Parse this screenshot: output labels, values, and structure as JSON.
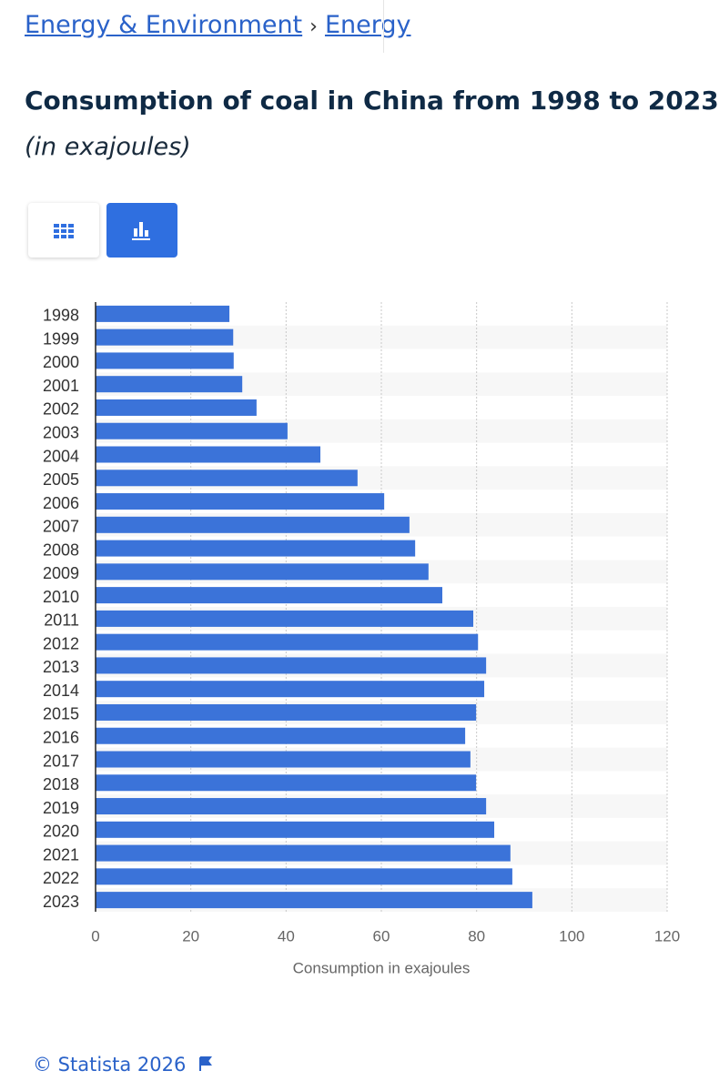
{
  "breadcrumb": {
    "items": [
      "Energy & Environment",
      "Energy"
    ],
    "separator": "›"
  },
  "header": {
    "title": "Consumption of coal in China from 1998 to 2023",
    "subtitle": "(in exajoules)"
  },
  "chart_data": {
    "type": "bar",
    "orientation": "horizontal",
    "categories": [
      "1998",
      "1999",
      "2000",
      "2001",
      "2002",
      "2003",
      "2004",
      "2005",
      "2006",
      "2007",
      "2008",
      "2009",
      "2010",
      "2011",
      "2012",
      "2013",
      "2014",
      "2015",
      "2016",
      "2017",
      "2018",
      "2019",
      "2020",
      "2021",
      "2022",
      "2023"
    ],
    "values": [
      28.1,
      28.9,
      29.0,
      30.8,
      33.8,
      40.3,
      47.2,
      55.0,
      60.6,
      65.9,
      67.1,
      69.9,
      72.8,
      79.3,
      80.3,
      82.0,
      81.6,
      79.9,
      77.6,
      78.7,
      79.9,
      82.0,
      83.7,
      87.1,
      87.5,
      91.7
    ],
    "color": "#3b73d9",
    "xlim": [
      0,
      120
    ],
    "xticks": [
      0,
      20,
      40,
      60,
      80,
      100,
      120
    ],
    "x_label": "Consumption in exajoules",
    "grid": true
  },
  "footer": {
    "copyright": "© Statista 2026"
  }
}
